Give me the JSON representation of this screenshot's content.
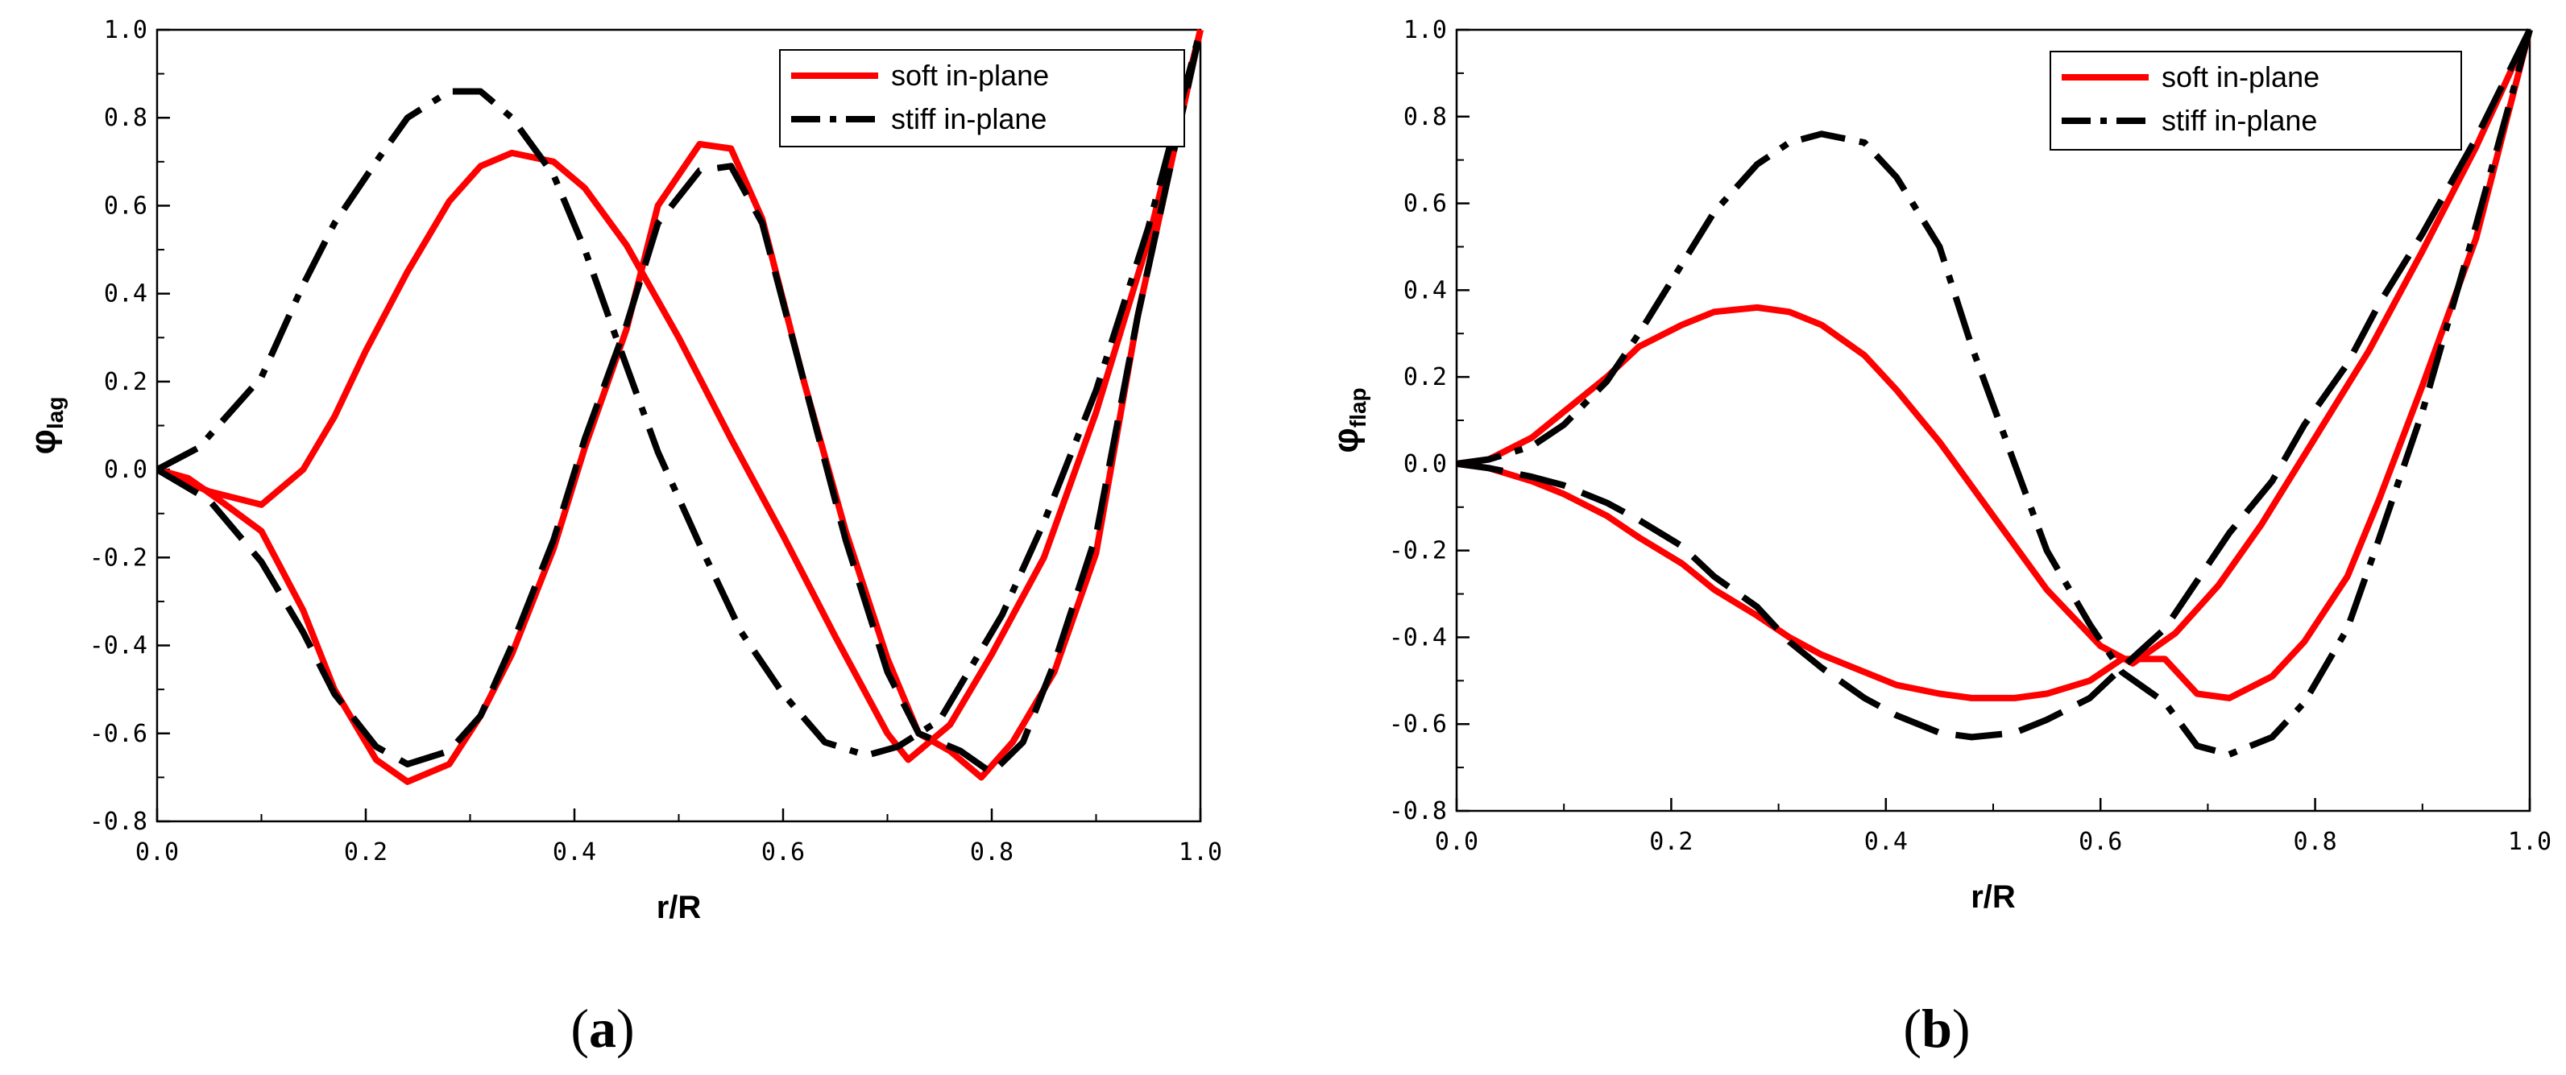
{
  "chart_data": [
    {
      "type": "line",
      "panel": "a",
      "caption": "(a)",
      "title": "",
      "xlabel": "r/R",
      "ylabel_main": "φ",
      "ylabel_sub": "lag",
      "xlim": [
        0.0,
        1.0
      ],
      "ylim": [
        -0.8,
        1.0
      ],
      "xticks": [
        0.0,
        0.2,
        0.4,
        0.6,
        0.8,
        1.0
      ],
      "xtick_labels": [
        "0.0",
        "0.2",
        "0.4",
        "0.6",
        "0.8",
        "1.0"
      ],
      "yticks": [
        -0.8,
        -0.6,
        -0.4,
        -0.2,
        0.0,
        0.2,
        0.4,
        0.6,
        0.8,
        1.0
      ],
      "ytick_labels": [
        "-0.8",
        "-0.6",
        "-0.4",
        "-0.2",
        "0.0",
        "0.2",
        "0.4",
        "0.6",
        "0.8",
        "1.0"
      ],
      "legend": {
        "position": "top-right",
        "entries": [
          "soft in-plane",
          "stiff in-plane"
        ]
      },
      "series": [
        {
          "name": "soft in-plane",
          "color": "#ff0000",
          "dash": "solid",
          "x": [
            0.0,
            0.05,
            0.1,
            0.14,
            0.17,
            0.2,
            0.24,
            0.28,
            0.31,
            0.34,
            0.38,
            0.41,
            0.45,
            0.5,
            0.55,
            0.6,
            0.65,
            0.7,
            0.72,
            0.76,
            0.8,
            0.85,
            0.9,
            0.95,
            1.0
          ],
          "y": [
            0.0,
            -0.05,
            -0.08,
            0.0,
            0.12,
            0.27,
            0.45,
            0.61,
            0.69,
            0.72,
            0.7,
            0.64,
            0.51,
            0.3,
            0.07,
            -0.15,
            -0.38,
            -0.6,
            -0.66,
            -0.58,
            -0.42,
            -0.2,
            0.13,
            0.52,
            1.0
          ]
        },
        {
          "name": "soft in-plane",
          "color": "#ff0000",
          "dash": "solid",
          "x": [
            0.0,
            0.03,
            0.06,
            0.1,
            0.14,
            0.17,
            0.21,
            0.24,
            0.28,
            0.31,
            0.34,
            0.38,
            0.41,
            0.45,
            0.48,
            0.52,
            0.55,
            0.58,
            0.62,
            0.66,
            0.7,
            0.73,
            0.76,
            0.79,
            0.82,
            0.86,
            0.9,
            0.94,
            1.0
          ],
          "y": [
            0.0,
            -0.02,
            -0.07,
            -0.14,
            -0.32,
            -0.5,
            -0.66,
            -0.71,
            -0.67,
            -0.56,
            -0.42,
            -0.18,
            0.05,
            0.32,
            0.6,
            0.74,
            0.73,
            0.57,
            0.2,
            -0.14,
            -0.43,
            -0.6,
            -0.64,
            -0.7,
            -0.62,
            -0.46,
            -0.19,
            0.35,
            1.0
          ]
        },
        {
          "name": "stiff in-plane",
          "color": "#000000",
          "dash": "dashdot",
          "x": [
            0.0,
            0.04,
            0.1,
            0.14,
            0.17,
            0.21,
            0.24,
            0.28,
            0.31,
            0.34,
            0.38,
            0.41,
            0.44,
            0.48,
            0.52,
            0.56,
            0.6,
            0.64,
            0.68,
            0.71,
            0.75,
            0.78,
            0.81,
            0.85,
            0.9,
            0.95,
            1.0
          ],
          "y": [
            0.0,
            0.05,
            0.21,
            0.42,
            0.56,
            0.7,
            0.8,
            0.86,
            0.86,
            0.8,
            0.67,
            0.5,
            0.3,
            0.04,
            -0.17,
            -0.37,
            -0.51,
            -0.62,
            -0.65,
            -0.63,
            -0.57,
            -0.45,
            -0.33,
            -0.12,
            0.18,
            0.55,
            1.0
          ]
        },
        {
          "name": "stiff in-plane",
          "color": "#000000",
          "dash": "dashed",
          "x": [
            0.0,
            0.05,
            0.1,
            0.14,
            0.17,
            0.21,
            0.24,
            0.28,
            0.31,
            0.34,
            0.38,
            0.41,
            0.45,
            0.48,
            0.52,
            0.55,
            0.58,
            0.62,
            0.66,
            0.7,
            0.73,
            0.77,
            0.8,
            0.83,
            0.86,
            0.9,
            0.94,
            1.0
          ],
          "y": [
            0.0,
            -0.07,
            -0.21,
            -0.37,
            -0.51,
            -0.63,
            -0.67,
            -0.64,
            -0.56,
            -0.4,
            -0.16,
            0.07,
            0.33,
            0.56,
            0.68,
            0.69,
            0.56,
            0.2,
            -0.16,
            -0.46,
            -0.6,
            -0.64,
            -0.69,
            -0.62,
            -0.44,
            -0.15,
            0.35,
            1.0
          ]
        }
      ]
    },
    {
      "type": "line",
      "panel": "b",
      "caption": "(b)",
      "title": "",
      "xlabel": "r/R",
      "ylabel_main": "φ",
      "ylabel_sub": "flap",
      "xlim": [
        0.0,
        1.0
      ],
      "ylim": [
        -0.8,
        1.0
      ],
      "xticks": [
        0.0,
        0.2,
        0.4,
        0.6,
        0.8,
        1.0
      ],
      "xtick_labels": [
        "0.0",
        "0.2",
        "0.4",
        "0.6",
        "0.8",
        "1.0"
      ],
      "yticks": [
        -0.8,
        -0.6,
        -0.4,
        -0.2,
        0.0,
        0.2,
        0.4,
        0.6,
        0.8,
        1.0
      ],
      "ytick_labels": [
        "-0.8",
        "-0.6",
        "-0.4",
        "-0.2",
        "0.0",
        "0.2",
        "0.4",
        "0.6",
        "0.8",
        "1.0"
      ],
      "legend": {
        "position": "top-right",
        "entries": [
          "soft in-plane",
          "stiff in-plane"
        ]
      },
      "series": [
        {
          "name": "soft in-plane",
          "color": "#ff0000",
          "dash": "solid",
          "x": [
            0.0,
            0.03,
            0.07,
            0.1,
            0.14,
            0.17,
            0.21,
            0.24,
            0.28,
            0.31,
            0.34,
            0.38,
            0.41,
            0.45,
            0.5,
            0.55,
            0.6,
            0.63,
            0.67,
            0.71,
            0.75,
            0.8,
            0.85,
            0.9,
            0.95,
            1.0
          ],
          "y": [
            0.0,
            0.01,
            0.06,
            0.12,
            0.2,
            0.27,
            0.32,
            0.35,
            0.36,
            0.35,
            0.32,
            0.25,
            0.17,
            0.05,
            -0.12,
            -0.29,
            -0.42,
            -0.46,
            -0.39,
            -0.28,
            -0.14,
            0.06,
            0.26,
            0.49,
            0.73,
            1.0
          ]
        },
        {
          "name": "soft in-plane",
          "color": "#ff0000",
          "dash": "solid",
          "x": [
            0.0,
            0.03,
            0.07,
            0.1,
            0.14,
            0.17,
            0.21,
            0.24,
            0.28,
            0.31,
            0.34,
            0.38,
            0.41,
            0.45,
            0.48,
            0.52,
            0.55,
            0.59,
            0.62,
            0.66,
            0.69,
            0.72,
            0.76,
            0.79,
            0.83,
            0.86,
            0.9,
            0.95,
            1.0
          ],
          "y": [
            0.0,
            -0.01,
            -0.04,
            -0.07,
            -0.12,
            -0.17,
            -0.23,
            -0.29,
            -0.35,
            -0.4,
            -0.44,
            -0.48,
            -0.51,
            -0.53,
            -0.54,
            -0.54,
            -0.53,
            -0.5,
            -0.45,
            -0.45,
            -0.53,
            -0.54,
            -0.49,
            -0.41,
            -0.26,
            -0.08,
            0.18,
            0.52,
            1.0
          ]
        },
        {
          "name": "stiff in-plane",
          "color": "#000000",
          "dash": "dashdot",
          "x": [
            0.0,
            0.03,
            0.07,
            0.1,
            0.14,
            0.17,
            0.21,
            0.24,
            0.28,
            0.31,
            0.34,
            0.38,
            0.41,
            0.45,
            0.48,
            0.52,
            0.55,
            0.59,
            0.62,
            0.66,
            0.69,
            0.72,
            0.76,
            0.79,
            0.83,
            0.86,
            0.9,
            0.95,
            1.0
          ],
          "y": [
            0.0,
            0.01,
            0.04,
            0.09,
            0.19,
            0.3,
            0.46,
            0.58,
            0.69,
            0.74,
            0.76,
            0.74,
            0.66,
            0.5,
            0.27,
            0.0,
            -0.2,
            -0.37,
            -0.48,
            -0.55,
            -0.65,
            -0.67,
            -0.63,
            -0.55,
            -0.38,
            -0.17,
            0.12,
            0.55,
            1.0
          ]
        },
        {
          "name": "stiff in-plane",
          "color": "#000000",
          "dash": "dashed",
          "x": [
            0.0,
            0.03,
            0.07,
            0.1,
            0.14,
            0.17,
            0.21,
            0.24,
            0.28,
            0.31,
            0.34,
            0.38,
            0.41,
            0.45,
            0.48,
            0.52,
            0.55,
            0.59,
            0.62,
            0.66,
            0.69,
            0.72,
            0.76,
            0.79,
            0.83,
            0.86,
            0.9,
            0.95,
            1.0
          ],
          "y": [
            0.0,
            -0.01,
            -0.03,
            -0.05,
            -0.09,
            -0.13,
            -0.19,
            -0.26,
            -0.33,
            -0.41,
            -0.47,
            -0.54,
            -0.58,
            -0.62,
            -0.63,
            -0.62,
            -0.59,
            -0.54,
            -0.47,
            -0.38,
            -0.27,
            -0.16,
            -0.04,
            0.09,
            0.23,
            0.37,
            0.53,
            0.75,
            1.0
          ]
        }
      ]
    }
  ]
}
